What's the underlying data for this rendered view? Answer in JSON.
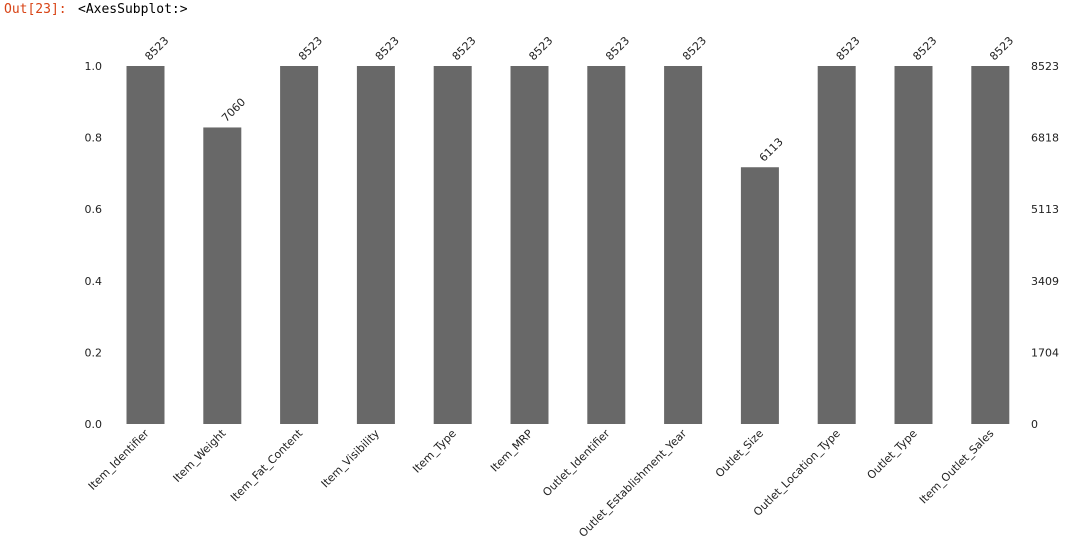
{
  "cell": {
    "prompt": "Out[23]:",
    "output": "<AxesSubplot:>"
  },
  "colors": {
    "bar": "#686868",
    "prompt": "#d84315"
  },
  "chart_data": {
    "type": "bar",
    "categories": [
      "Item_Identifier",
      "Item_Weight",
      "Item_Fat_Content",
      "Item_Visibility",
      "Item_Type",
      "Item_MRP",
      "Outlet_Identifier",
      "Outlet_Establishment_Year",
      "Outlet_Size",
      "Outlet_Location_Type",
      "Outlet_Type",
      "Item_Outlet_Sales"
    ],
    "values": [
      1.0,
      0.8283,
      1.0,
      1.0,
      1.0,
      1.0,
      1.0,
      1.0,
      0.7172,
      1.0,
      1.0,
      1.0
    ],
    "counts": [
      "8523",
      "7060",
      "8523",
      "8523",
      "8523",
      "8523",
      "8523",
      "8523",
      "6113",
      "8523",
      "8523",
      "8523"
    ],
    "ylim": [
      0,
      1.0
    ],
    "left_ticks": [
      "0.0",
      "0.2",
      "0.4",
      "0.6",
      "0.8",
      "1.0"
    ],
    "right_ticks": [
      "0",
      "1704",
      "3409",
      "5113",
      "6818",
      "8523"
    ],
    "grid": false
  }
}
